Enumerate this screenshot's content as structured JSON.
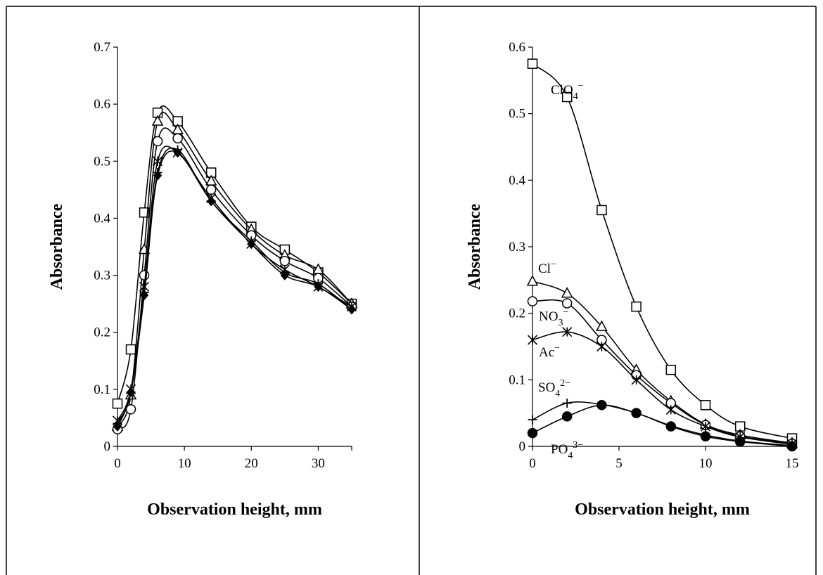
{
  "chart_data": [
    {
      "type": "line",
      "title": "",
      "xlabel": "Observation height, mm",
      "ylabel": "Absorbance",
      "xlim": [
        0,
        35
      ],
      "ylim": [
        0,
        0.7
      ],
      "xticks": [
        "0",
        "10",
        "20",
        "30"
      ],
      "yticks": [
        "0",
        "0.1",
        "0.2",
        "0.3",
        "0.4",
        "0.5",
        "0.6",
        "0.7"
      ],
      "legend": "none",
      "series": [
        {
          "marker": "square",
          "x": [
            0,
            2,
            4,
            6,
            9,
            14,
            20,
            25,
            30,
            35
          ],
          "y": [
            0.075,
            0.17,
            0.41,
            0.585,
            0.57,
            0.48,
            0.385,
            0.345,
            0.305,
            0.25
          ]
        },
        {
          "marker": "triangle",
          "x": [
            0,
            2,
            4,
            6,
            9,
            14,
            20,
            25,
            30,
            35
          ],
          "y": [
            0.035,
            0.09,
            0.345,
            0.57,
            0.555,
            0.465,
            0.38,
            0.335,
            0.31,
            0.25
          ]
        },
        {
          "marker": "circle",
          "x": [
            0,
            2,
            4,
            6,
            9,
            14,
            20,
            25,
            30,
            35
          ],
          "y": [
            0.03,
            0.065,
            0.3,
            0.535,
            0.54,
            0.45,
            0.37,
            0.325,
            0.295,
            0.245
          ]
        },
        {
          "marker": "asterisk",
          "x": [
            0,
            2,
            4,
            6,
            9,
            14,
            20,
            25,
            30,
            35
          ],
          "y": [
            0.045,
            0.1,
            0.28,
            0.5,
            0.515,
            0.435,
            0.355,
            0.31,
            0.28,
            0.245
          ]
        },
        {
          "marker": "plus",
          "x": [
            0,
            2,
            4,
            6,
            9,
            14,
            20,
            25,
            30,
            35
          ],
          "y": [
            0.04,
            0.095,
            0.27,
            0.48,
            0.52,
            0.43,
            0.36,
            0.305,
            0.285,
            0.24
          ]
        },
        {
          "marker": "diamond",
          "x": [
            0,
            2,
            4,
            6,
            9,
            14,
            20,
            25,
            30,
            35
          ],
          "y": [
            0.035,
            0.095,
            0.265,
            0.475,
            0.515,
            0.43,
            0.355,
            0.3,
            0.28,
            0.24
          ]
        }
      ]
    },
    {
      "type": "line",
      "title": "",
      "xlabel": "Observation height, mm",
      "ylabel": "Absorbance",
      "xlim": [
        0,
        15
      ],
      "ylim": [
        0,
        0.6
      ],
      "xticks": [
        "0",
        "5",
        "10",
        "15"
      ],
      "yticks": [
        "0",
        "0.1",
        "0.2",
        "0.3",
        "0.4",
        "0.5",
        "0.6"
      ],
      "legend": "inline labels",
      "series": [
        {
          "name": "ClO4−",
          "label_base": "ClO",
          "label_sub": "4",
          "label_sup": "−",
          "marker": "square",
          "x": [
            0,
            2,
            4,
            6,
            8,
            10,
            12,
            15
          ],
          "y": [
            0.575,
            0.525,
            0.355,
            0.21,
            0.115,
            0.062,
            0.03,
            0.012
          ]
        },
        {
          "name": "Cl−",
          "label_base": "Cl",
          "label_sub": "",
          "label_sup": "−",
          "marker": "triangle",
          "x": [
            0,
            2,
            4,
            6,
            8,
            10,
            12,
            15
          ],
          "y": [
            0.248,
            0.23,
            0.18,
            0.115,
            0.068,
            0.033,
            0.017,
            0.005
          ]
        },
        {
          "name": "NO3−",
          "label_base": "NO",
          "label_sub": "3",
          "label_sup": "−",
          "marker": "circle",
          "x": [
            0,
            2,
            4,
            6,
            8,
            10,
            12,
            15
          ],
          "y": [
            0.218,
            0.215,
            0.16,
            0.107,
            0.065,
            0.032,
            0.015,
            0.004
          ]
        },
        {
          "name": "Ac−",
          "label_base": "Ac",
          "label_sub": "",
          "label_sup": "−",
          "marker": "asterisk",
          "x": [
            0,
            2,
            4,
            6,
            8,
            10,
            12,
            15
          ],
          "y": [
            0.16,
            0.172,
            0.15,
            0.1,
            0.055,
            0.03,
            0.014,
            0.003
          ]
        },
        {
          "name": "SO42−",
          "label_base": "SO",
          "label_sub": "4",
          "label_sup": "2−",
          "marker": "plus",
          "x": [
            0,
            2,
            4,
            6,
            8,
            10,
            12,
            15
          ],
          "y": [
            0.04,
            0.065,
            0.063,
            0.05,
            0.031,
            0.017,
            0.008,
            0.001
          ]
        },
        {
          "name": "PO43−",
          "label_base": "PO",
          "label_sub": "4",
          "label_sup": "3−",
          "marker": "filled-circle",
          "x": [
            0,
            2,
            4,
            6,
            8,
            10,
            12,
            15
          ],
          "y": [
            0.02,
            0.045,
            0.062,
            0.05,
            0.03,
            0.015,
            0.007,
            0.0
          ]
        }
      ]
    }
  ]
}
